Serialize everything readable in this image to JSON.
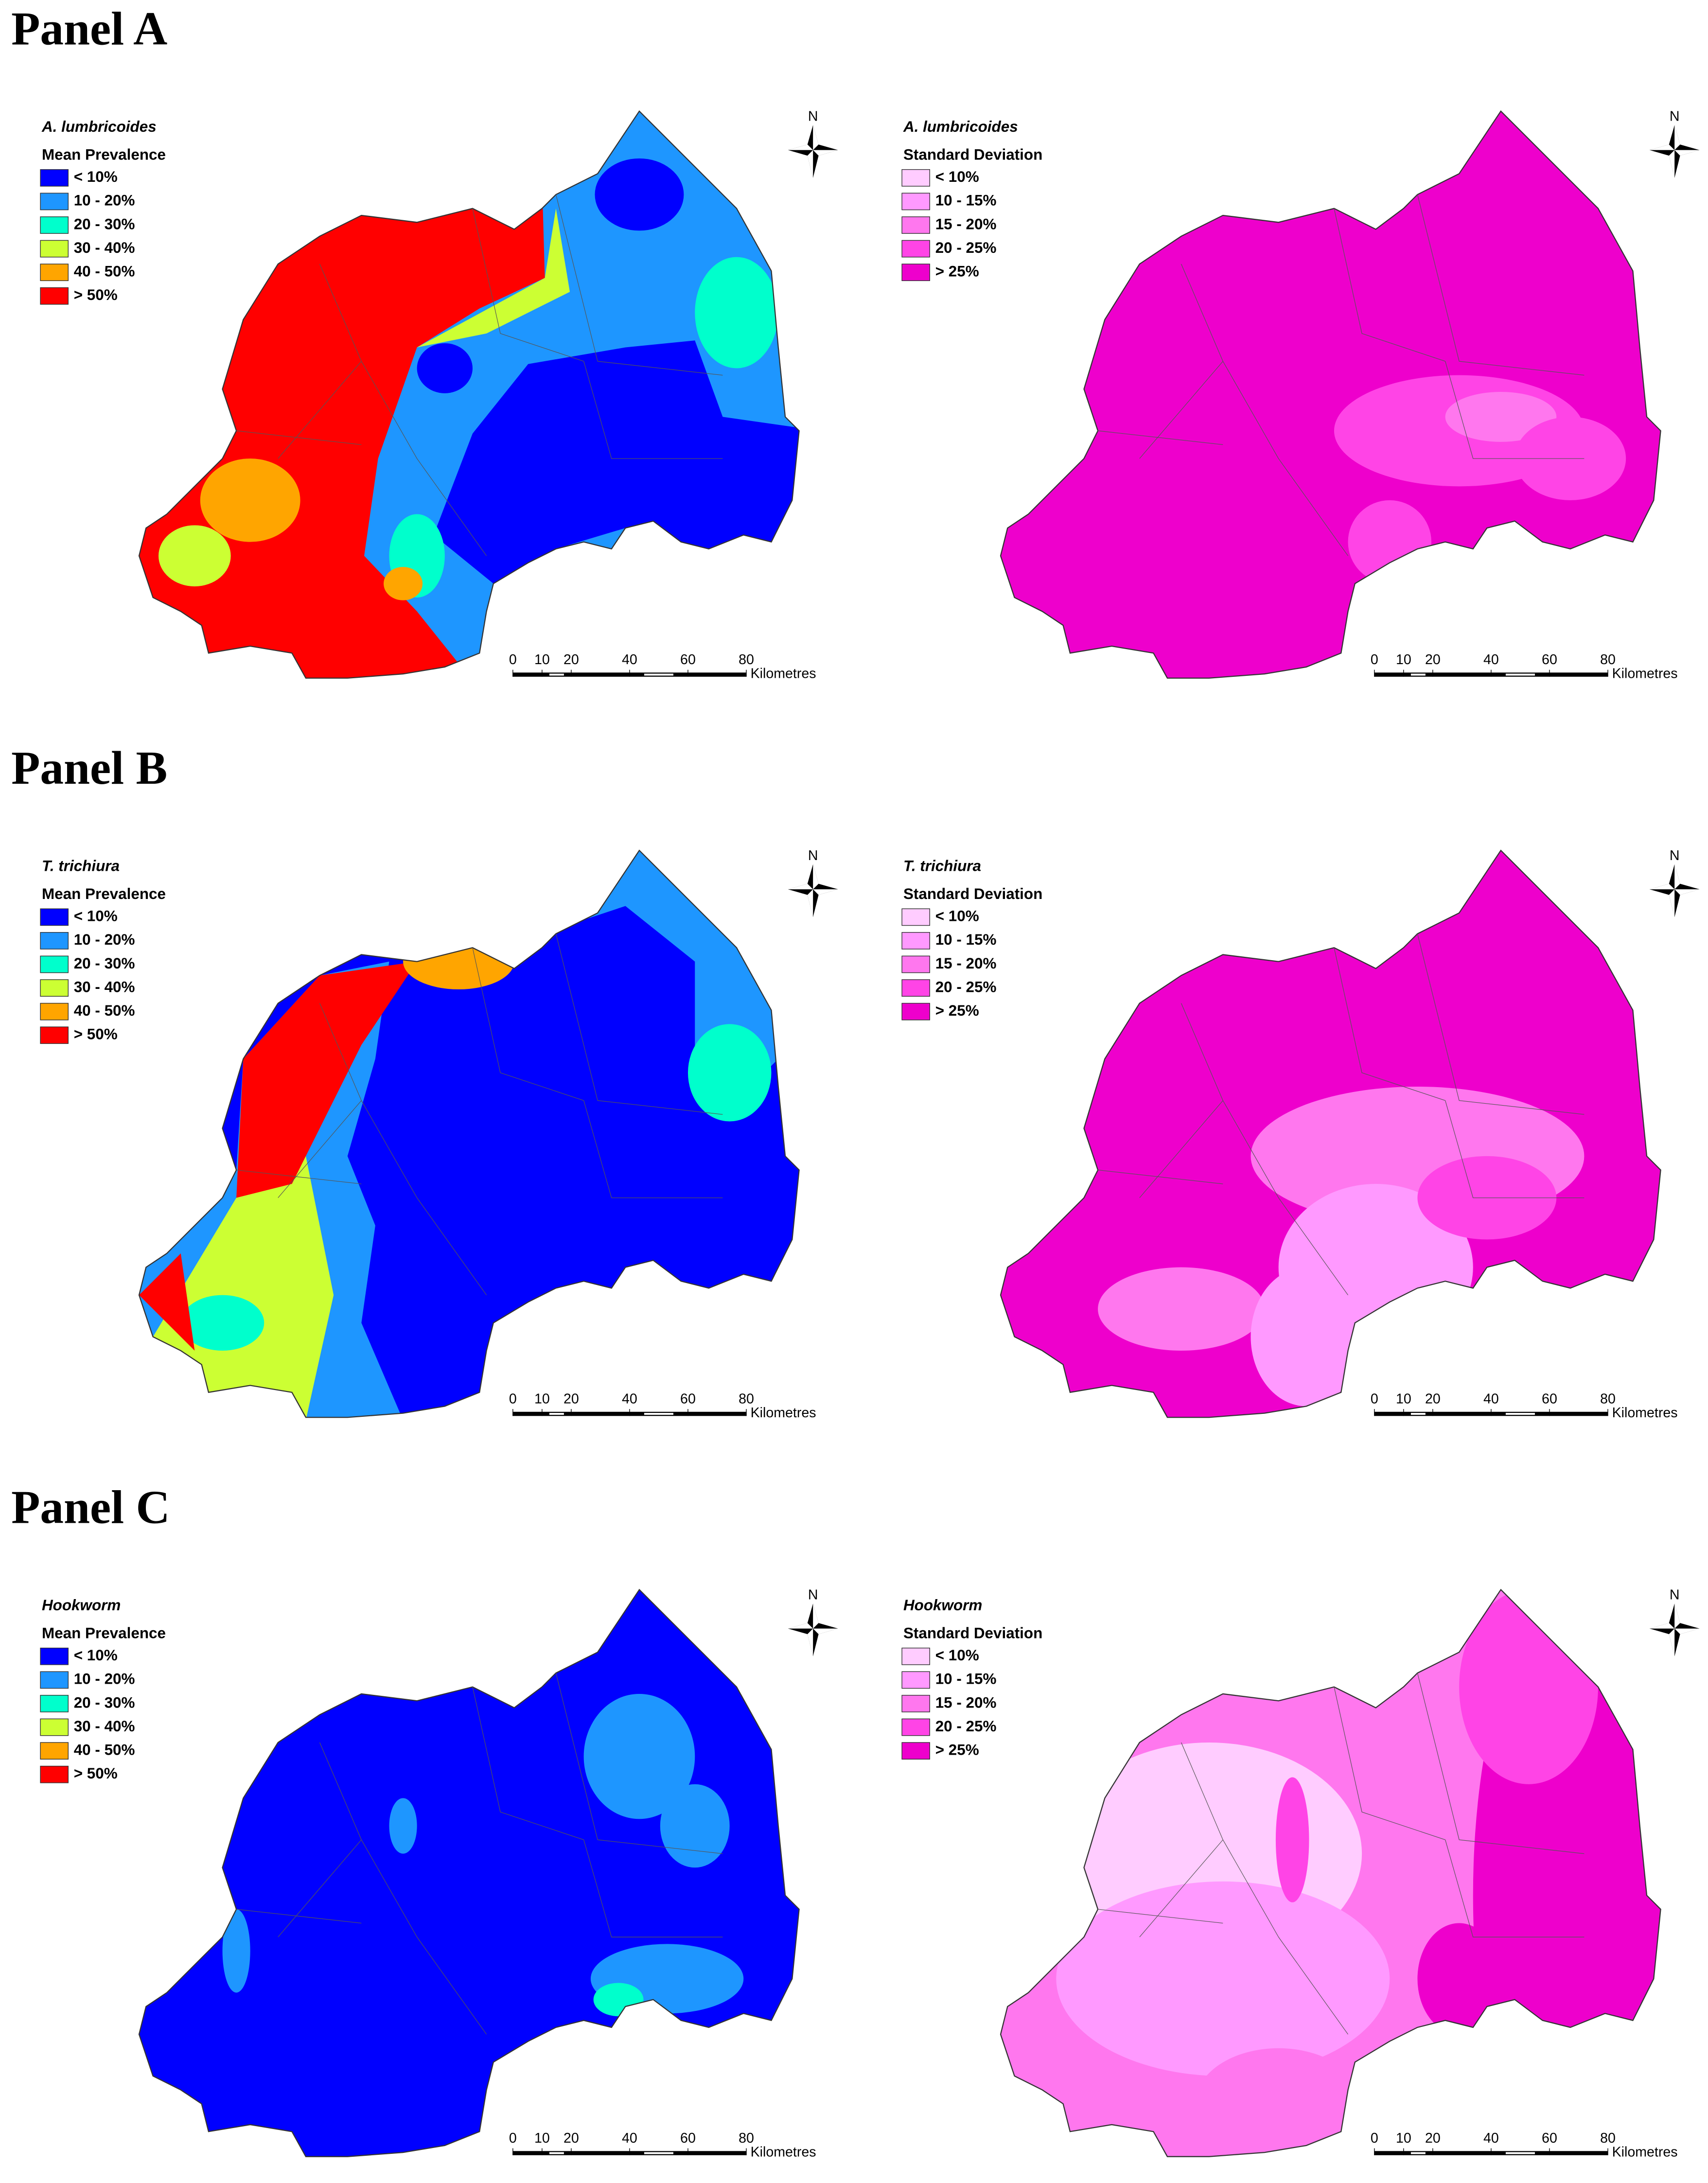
{
  "panels": [
    {
      "title": "Panel A",
      "maps": [
        {
          "species": "A. lumbricoides",
          "measure": "Mean Prevalence",
          "legend": "prevalence"
        },
        {
          "species": "A. lumbricoides",
          "measure": "Standard Deviation",
          "legend": "sd"
        }
      ]
    },
    {
      "title": "Panel B",
      "maps": [
        {
          "species": "T. trichiura",
          "measure": "Mean Prevalence",
          "legend": "prevalence"
        },
        {
          "species": "T. trichiura",
          "measure": "Standard Deviation",
          "legend": "sd"
        }
      ]
    },
    {
      "title": "Panel C",
      "maps": [
        {
          "species": "Hookworm",
          "measure": "Mean Prevalence",
          "legend": "prevalence"
        },
        {
          "species": "Hookworm",
          "measure": "Standard Deviation",
          "legend": "sd"
        }
      ]
    }
  ],
  "legends": {
    "prevalence": [
      {
        "label": "< 10%",
        "color": "#0000ff"
      },
      {
        "label": "10 - 20%",
        "color": "#1e96ff"
      },
      {
        "label": "20 - 30%",
        "color": "#00ffcc"
      },
      {
        "label": "30 - 40%",
        "color": "#ccff33"
      },
      {
        "label": "40 - 50%",
        "color": "#ffa500"
      },
      {
        "label": "> 50%",
        "color": "#ff0000"
      }
    ],
    "sd": [
      {
        "label": "< 10%",
        "color": "#ffccff"
      },
      {
        "label": "10 - 15%",
        "color": "#ff99ff"
      },
      {
        "label": "15 - 20%",
        "color": "#ff77ee"
      },
      {
        "label": "20 - 25%",
        "color": "#ff44e6"
      },
      {
        "label": "> 25%",
        "color": "#ee00cc"
      }
    ]
  },
  "scale_bar": {
    "ticks": [
      0,
      10,
      20,
      40,
      60,
      80
    ],
    "unit": "Kilometres"
  },
  "north": "N"
}
